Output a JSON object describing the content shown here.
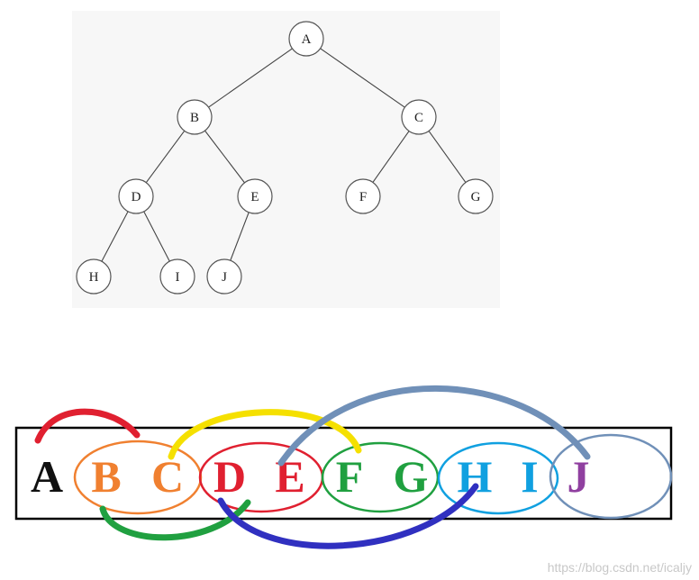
{
  "tree": {
    "nodes": [
      {
        "id": "A",
        "label": "A"
      },
      {
        "id": "B",
        "label": "B"
      },
      {
        "id": "C",
        "label": "C"
      },
      {
        "id": "D",
        "label": "D"
      },
      {
        "id": "E",
        "label": "E"
      },
      {
        "id": "F",
        "label": "F"
      },
      {
        "id": "G",
        "label": "G"
      },
      {
        "id": "H",
        "label": "H"
      },
      {
        "id": "I",
        "label": "I"
      },
      {
        "id": "J",
        "label": "J"
      }
    ],
    "edges": [
      [
        "A",
        "B"
      ],
      [
        "A",
        "C"
      ],
      [
        "B",
        "D"
      ],
      [
        "B",
        "E"
      ],
      [
        "C",
        "F"
      ],
      [
        "C",
        "G"
      ],
      [
        "D",
        "H"
      ],
      [
        "D",
        "I"
      ],
      [
        "E",
        "J"
      ]
    ]
  },
  "array": {
    "cells": [
      {
        "label": "A",
        "color": "#111111"
      },
      {
        "label": "B",
        "color": "#f08030"
      },
      {
        "label": "C",
        "color": "#f08030"
      },
      {
        "label": "D",
        "color": "#e02030"
      },
      {
        "label": "E",
        "color": "#e02030"
      },
      {
        "label": "F",
        "color": "#20a040"
      },
      {
        "label": "G",
        "color": "#20a040"
      },
      {
        "label": "H",
        "color": "#10a0e0"
      },
      {
        "label": "I",
        "color": "#10a0e0"
      },
      {
        "label": "J",
        "color": "#9040a0"
      }
    ],
    "groups": [
      {
        "name": "children-of-A",
        "cells": [
          "B",
          "C"
        ],
        "color": "#f08030"
      },
      {
        "name": "children-of-B",
        "cells": [
          "D",
          "E"
        ],
        "color": "#e02030"
      },
      {
        "name": "children-of-C",
        "cells": [
          "F",
          "G"
        ],
        "color": "#20a040"
      },
      {
        "name": "children-of-D",
        "cells": [
          "H",
          "I"
        ],
        "color": "#10a0e0"
      },
      {
        "name": "children-of-E",
        "cells": [
          "J"
        ],
        "color": "#7090b8"
      }
    ],
    "links": [
      {
        "from": "A",
        "to": "B",
        "color": "#e02030"
      },
      {
        "from": "B",
        "to": "D",
        "color": "#20a040"
      },
      {
        "from": "C",
        "to": "F",
        "color": "#f5e000"
      },
      {
        "from": "D",
        "to": "H",
        "color": "#3030c0"
      },
      {
        "from": "E",
        "to": "J",
        "color": "#7090b8"
      }
    ]
  },
  "watermark": "https://blog.csdn.net/icaljy"
}
